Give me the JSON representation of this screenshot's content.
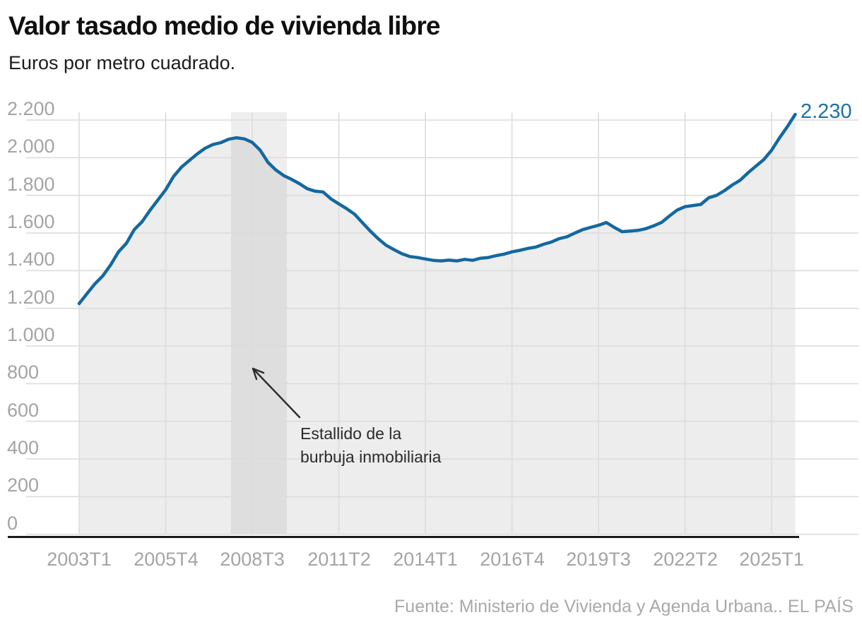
{
  "header": {
    "title": "Valor tasado medio de vivienda libre",
    "subtitle": "Euros por metro cuadrado."
  },
  "annotation": {
    "lines": [
      "Estallido de la",
      "burbuja inmobiliaria"
    ]
  },
  "footer": {
    "source": "Fuente: Ministerio de Vivienda y Agenda Urbana..",
    "brand": "EL PAÍS"
  },
  "chart_data": {
    "type": "area",
    "title": "Valor tasado medio de vivienda libre",
    "subtitle": "Euros por metro cuadrado.",
    "frequency": "quarterly",
    "x_start": "2003T1",
    "x_end": "2025T4",
    "ylim": [
      0,
      2200
    ],
    "grid": true,
    "y_ticks": [
      {
        "label": "2.200",
        "value": 2200
      },
      {
        "label": "2.000",
        "value": 2000
      },
      {
        "label": "1.800",
        "value": 1800
      },
      {
        "label": "1.600",
        "value": 1600
      },
      {
        "label": "1.400",
        "value": 1400
      },
      {
        "label": "1.200",
        "value": 1200
      },
      {
        "label": "1.000",
        "value": 1000
      },
      {
        "label": "800",
        "value": 800
      },
      {
        "label": "600",
        "value": 600
      },
      {
        "label": "400",
        "value": 400
      },
      {
        "label": "200",
        "value": 200
      },
      {
        "label": "0",
        "value": 0
      }
    ],
    "x_ticks": [
      {
        "label": "2003T1",
        "index": 0
      },
      {
        "label": "2005T4",
        "index": 11
      },
      {
        "label": "2008T3",
        "index": 22
      },
      {
        "label": "2011T2",
        "index": 33
      },
      {
        "label": "2014T1",
        "index": 44
      },
      {
        "label": "2016T4",
        "index": 55
      },
      {
        "label": "2019T3",
        "index": 66
      },
      {
        "label": "2022T2",
        "index": 77
      },
      {
        "label": "2025T1",
        "index": 88
      }
    ],
    "series": [
      {
        "name": "Valor tasado medio de vivienda libre (euros/m2)",
        "values": [
          1225,
          1278,
          1330,
          1372,
          1430,
          1500,
          1545,
          1618,
          1660,
          1720,
          1775,
          1830,
          1900,
          1950,
          1985,
          2020,
          2050,
          2070,
          2080,
          2098,
          2106,
          2100,
          2081,
          2040,
          1975,
          1935,
          1905,
          1885,
          1862,
          1835,
          1822,
          1818,
          1781,
          1755,
          1729,
          1700,
          1655,
          1610,
          1570,
          1535,
          1512,
          1490,
          1475,
          1470,
          1462,
          1455,
          1452,
          1456,
          1452,
          1460,
          1455,
          1466,
          1470,
          1480,
          1488,
          1500,
          1508,
          1518,
          1525,
          1540,
          1552,
          1570,
          1580,
          1600,
          1618,
          1630,
          1641,
          1656,
          1630,
          1607,
          1610,
          1614,
          1623,
          1638,
          1656,
          1690,
          1722,
          1740,
          1746,
          1752,
          1787,
          1800,
          1825,
          1855,
          1880,
          1920,
          1955,
          1990,
          2040,
          2105,
          2165,
          2230
        ]
      }
    ],
    "shaded_band": {
      "from_index": 19.3,
      "to_index": 26.4,
      "label": "Estallido de la burbuja inmobiliaria"
    },
    "last_value": 2230,
    "last_value_label": "2.230",
    "colors": {
      "line": "#14689f",
      "area_fill": "#ededed",
      "band": "rgba(125,125,125,0.13)",
      "grid": "#dcdcdc",
      "axis": "#1a1a1a",
      "tick_text": "#a4a4a4",
      "end_label": "#1c70a6",
      "annotation": "#2b2b2b"
    }
  }
}
